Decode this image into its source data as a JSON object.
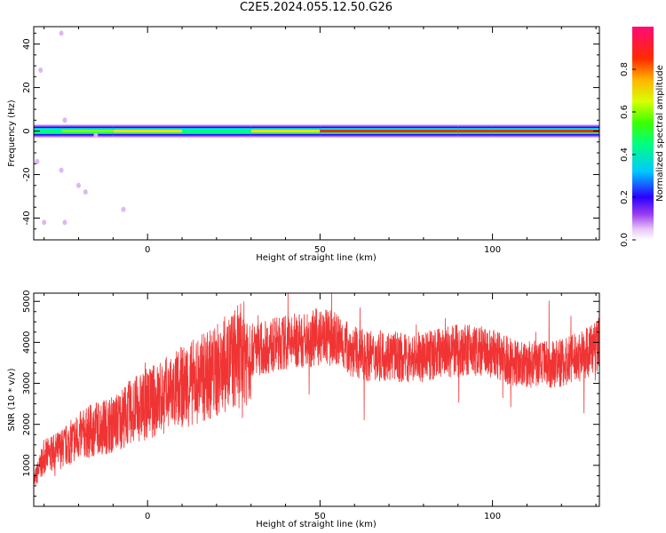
{
  "title": "C2E5.2024.055.12.50.G26",
  "colors": {
    "line": "#f03434",
    "axis": "#000000",
    "background": "#ffffff"
  },
  "chart_data": [
    {
      "type": "heatmap",
      "xlabel": "Height of straight line (km)",
      "ylabel": "Frequency (Hz)",
      "xlim": [
        -33,
        131
      ],
      "ylim": [
        -50,
        48
      ],
      "x_ticks": [
        0,
        50,
        100
      ],
      "y_ticks": [
        -40,
        -20,
        0,
        20,
        40
      ],
      "grid": false,
      "colorbar": {
        "label": "Normalized spectral amplitude",
        "range": [
          0,
          1
        ],
        "ticks": [
          "0.0",
          "0.2",
          "0.4",
          "0.6",
          "0.8"
        ],
        "colormap": "rainbow"
      },
      "description_of_signal": "Narrow spectral ridge near 0 Hz; amplitude weak and fragmented at low heights, strong (0.8-1.0) from about 50 to 130 km; sparse low-amplitude speckle between -33 and -20 km",
      "ridge_segments": [
        {
          "x0": -33,
          "x1": -25,
          "amp": 0.55
        },
        {
          "x0": -25,
          "x1": -10,
          "amp": 0.6
        },
        {
          "x0": -10,
          "x1": 10,
          "amp": 0.75
        },
        {
          "x0": 10,
          "x1": 30,
          "amp": 0.55
        },
        {
          "x0": 30,
          "x1": 50,
          "amp": 0.7
        },
        {
          "x0": 50,
          "x1": 90,
          "amp": 0.95
        },
        {
          "x0": 90,
          "x1": 100,
          "amp": 0.85
        },
        {
          "x0": 100,
          "x1": 131,
          "amp": 0.95
        }
      ]
    },
    {
      "type": "line",
      "xlabel": "Height of straight line (km)",
      "ylabel": "SNR (10 * v/v)",
      "xlim": [
        -33,
        131
      ],
      "ylim": [
        0,
        5200
      ],
      "x_ticks": [
        0,
        50,
        100
      ],
      "y_ticks": [
        1000,
        2000,
        3000,
        4000,
        5000
      ],
      "grid": false,
      "series": [
        {
          "x": [
            -33,
            -30,
            -25,
            -20,
            -15,
            -10,
            -5,
            0,
            5,
            10,
            15,
            20,
            25,
            30,
            35,
            40,
            45,
            50,
            55,
            60,
            65,
            70,
            75,
            80,
            85,
            90,
            95,
            100,
            105,
            110,
            115,
            120,
            125,
            131
          ],
          "values": [
            600,
            1200,
            1400,
            1700,
            1900,
            2000,
            2300,
            2500,
            2700,
            2900,
            3100,
            3300,
            3600,
            3800,
            3900,
            4000,
            4050,
            4150,
            4050,
            3750,
            3650,
            3700,
            3600,
            3650,
            3750,
            3800,
            3800,
            3700,
            3550,
            3450,
            3450,
            3500,
            3650,
            3950
          ]
        }
      ]
    }
  ]
}
